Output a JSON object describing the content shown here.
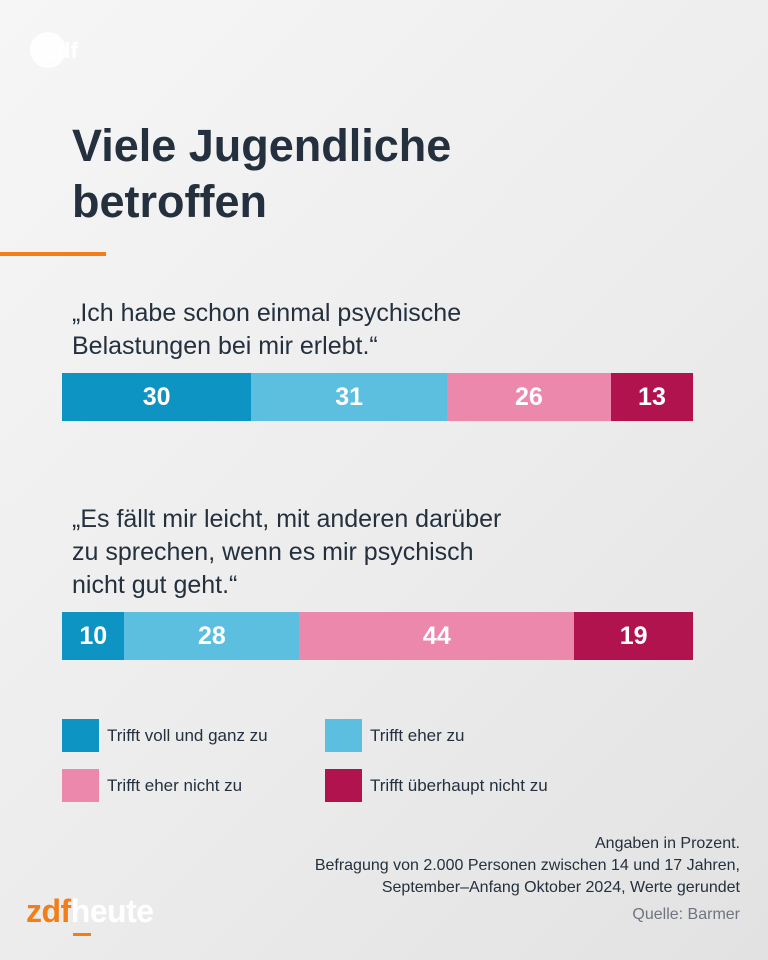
{
  "logo_top": {
    "text": "zdf"
  },
  "title": "Viele Jugendliche\nbetroffen",
  "chart_data": [
    {
      "type": "bar",
      "stacked": true,
      "orientation": "horizontal",
      "title": "„Ich habe schon einmal psychische\nBelastungen bei mir erlebt.“",
      "series": [
        {
          "name": "Trifft voll und ganz zu",
          "value": 30
        },
        {
          "name": "Trifft eher zu",
          "value": 31
        },
        {
          "name": "Trifft eher nicht zu",
          "value": 26
        },
        {
          "name": "Trifft überhaupt nicht zu",
          "value": 13
        }
      ]
    },
    {
      "type": "bar",
      "stacked": true,
      "orientation": "horizontal",
      "title": "„Es fällt mir leicht, mit anderen darüber\nzu sprechen, wenn es mir psychisch\nnicht gut geht.“",
      "series": [
        {
          "name": "Trifft voll und ganz zu",
          "value": 10
        },
        {
          "name": "Trifft eher zu",
          "value": 28
        },
        {
          "name": "Trifft eher nicht zu",
          "value": 44
        },
        {
          "name": "Trifft überhaupt nicht zu",
          "value": 19
        }
      ]
    }
  ],
  "legend": [
    {
      "label": "Trifft voll und ganz zu",
      "color": "#0e94c3"
    },
    {
      "label": "Trifft eher zu",
      "color": "#5dbfe0"
    },
    {
      "label": "Trifft eher nicht zu",
      "color": "#ec88ab"
    },
    {
      "label": "Trifft überhaupt nicht zu",
      "color": "#b1134f"
    }
  ],
  "footnote": {
    "line1": "Angaben in Prozent.",
    "line2": "Befragung von 2.000 Personen zwischen 14 und 17 Jahren,",
    "line3": "September–Anfang Oktober 2024, Werte gerundet"
  },
  "source": "Quelle: Barmer",
  "brand": {
    "part1": "zdf",
    "part2": "heute"
  }
}
